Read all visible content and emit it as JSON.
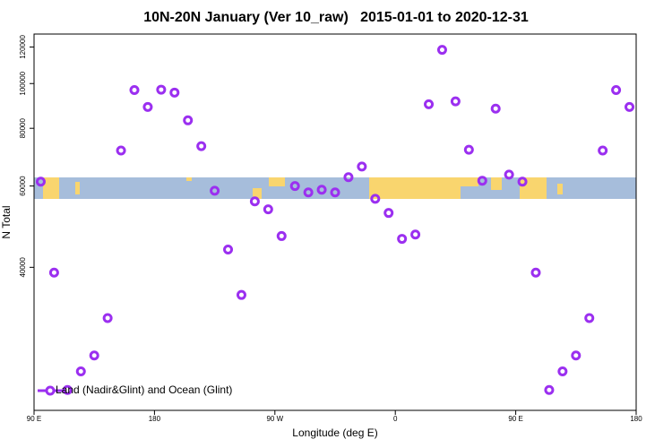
{
  "chart_data": {
    "type": "scatter",
    "title": "10N-20N January (Ver 10_raw)   2015-01-01 to 2020-12-31",
    "x_label": "Longitude (deg E)",
    "y_label": "N Total",
    "x": [
      95,
      105,
      115,
      125,
      135,
      145,
      155,
      165,
      175,
      185,
      195,
      205,
      215,
      225,
      235,
      245,
      255,
      265,
      275,
      285,
      295,
      305,
      315,
      325,
      335,
      345,
      355,
      365,
      375,
      385,
      395,
      405,
      415,
      425,
      435,
      445,
      455,
      465,
      475,
      485,
      495,
      505,
      515,
      525,
      535
    ],
    "series": [
      {
        "name": "Land (Nadir&Glint) and Ocean (Glint)",
        "color": "#9b2ff0",
        "values": [
          61300,
          38950,
          21700,
          23800,
          25770,
          31060,
          71600,
          96830,
          89000,
          97000,
          95600,
          83240,
          73200,
          58600,
          43700,
          34850,
          55580,
          53400,
          46750,
          60000,
          58100,
          58900,
          58100,
          62700,
          66100,
          56300,
          52450,
          46100,
          47100,
          90200,
          118300,
          91500,
          71900,
          61600,
          88260,
          63500,
          61300,
          38950,
          21700,
          23800,
          25770,
          31060,
          71600,
          96830,
          89000
        ]
      }
    ],
    "xlim": [
      90,
      540
    ],
    "xticks": [
      {
        "value": 90,
        "label": "90 E"
      },
      180,
      {
        "value": 270,
        "label": "90 W"
      },
      {
        "value": 360,
        "label": "0"
      },
      {
        "value": 450,
        "label": "90 E"
      },
      {
        "value": 540,
        "label": "180"
      }
    ],
    "ylim": [
      19600,
      128000
    ],
    "yticks": [
      40000,
      60000,
      80000,
      100000,
      120000
    ],
    "ylog": true,
    "legend": "bottom left"
  }
}
